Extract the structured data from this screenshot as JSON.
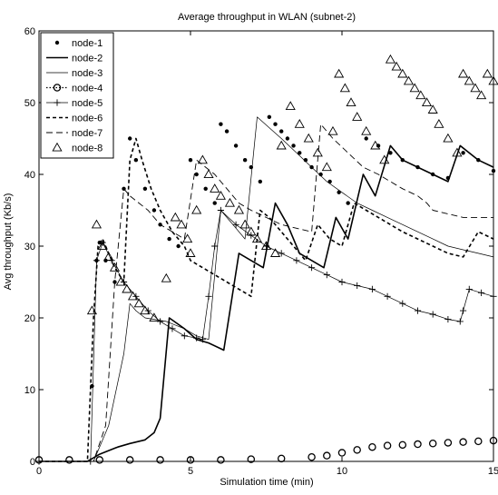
{
  "chart_data": {
    "type": "line",
    "title": "Average throughput in WLAN (subnet-2)",
    "xlabel": "Simulation time (min)",
    "ylabel": "Avg throughput (Kb/s)",
    "xlim": [
      0,
      15
    ],
    "ylim": [
      0,
      60
    ],
    "xticks": [
      0,
      5,
      10,
      15
    ],
    "yticks": [
      0,
      10,
      20,
      30,
      40,
      50,
      60
    ],
    "grid": false,
    "legend": "top-left",
    "series": [
      {
        "name": "node-1",
        "style": "dots",
        "points": [
          [
            1.75,
            10.5
          ],
          [
            1.9,
            28
          ],
          [
            2.0,
            30.5
          ],
          [
            2.2,
            28
          ],
          [
            2.5,
            25
          ],
          [
            2.8,
            38
          ],
          [
            3.0,
            45
          ],
          [
            3.2,
            42
          ],
          [
            3.5,
            38
          ],
          [
            3.8,
            35
          ],
          [
            4.0,
            33
          ],
          [
            4.3,
            31
          ],
          [
            4.6,
            30
          ],
          [
            5.0,
            42
          ],
          [
            5.2,
            40
          ],
          [
            5.5,
            38
          ],
          [
            5.8,
            36
          ],
          [
            6.0,
            47
          ],
          [
            6.2,
            46
          ],
          [
            6.5,
            44
          ],
          [
            6.8,
            42
          ],
          [
            7.0,
            41
          ],
          [
            7.3,
            39
          ],
          [
            7.6,
            48
          ],
          [
            7.8,
            47
          ],
          [
            8.0,
            46
          ],
          [
            8.2,
            45
          ],
          [
            8.4,
            44
          ],
          [
            8.6,
            43
          ],
          [
            8.8,
            42
          ],
          [
            9.0,
            41
          ],
          [
            9.3,
            40
          ],
          [
            9.6,
            39
          ],
          [
            9.9,
            37.5
          ],
          [
            10.2,
            36
          ],
          [
            10.8,
            45
          ],
          [
            11.2,
            44
          ],
          [
            11.6,
            43
          ],
          [
            12.0,
            42
          ],
          [
            12.5,
            41
          ],
          [
            13.0,
            40
          ],
          [
            13.5,
            39.5
          ],
          [
            14.0,
            43
          ],
          [
            14.5,
            42
          ],
          [
            15.0,
            40.5
          ]
        ]
      },
      {
        "name": "node-2",
        "style": "solid",
        "points": [
          [
            0,
            0
          ],
          [
            1.6,
            0
          ],
          [
            1.8,
            0.5
          ],
          [
            2.0,
            1
          ],
          [
            2.3,
            1.5
          ],
          [
            2.6,
            2
          ],
          [
            3.0,
            2.5
          ],
          [
            3.5,
            3
          ],
          [
            3.8,
            4
          ],
          [
            4.0,
            6
          ],
          [
            4.3,
            20
          ],
          [
            4.8,
            18.5
          ],
          [
            5.2,
            17
          ],
          [
            5.6,
            16.5
          ],
          [
            6.1,
            15.5
          ],
          [
            6.6,
            29
          ],
          [
            7.0,
            28
          ],
          [
            7.4,
            27
          ],
          [
            7.8,
            36
          ],
          [
            8.2,
            33
          ],
          [
            8.6,
            29
          ],
          [
            9.0,
            28
          ],
          [
            9.4,
            27
          ],
          [
            9.8,
            34
          ],
          [
            10.2,
            31
          ],
          [
            10.7,
            40
          ],
          [
            11.1,
            37
          ],
          [
            11.6,
            44
          ],
          [
            12.0,
            42
          ],
          [
            12.5,
            41
          ],
          [
            13.0,
            40
          ],
          [
            13.5,
            39
          ],
          [
            13.9,
            44
          ],
          [
            14.5,
            42
          ],
          [
            15.0,
            41
          ]
        ]
      },
      {
        "name": "node-3",
        "style": "thin",
        "points": [
          [
            0,
            0
          ],
          [
            1.8,
            0
          ],
          [
            2.3,
            5
          ],
          [
            2.8,
            15
          ],
          [
            3.0,
            22
          ],
          [
            3.2,
            21
          ],
          [
            3.5,
            20
          ],
          [
            4.2,
            19.5
          ],
          [
            4.8,
            18.5
          ],
          [
            5.2,
            17.5
          ],
          [
            5.6,
            17
          ],
          [
            6.0,
            35
          ],
          [
            6.4,
            33
          ],
          [
            6.8,
            31
          ],
          [
            7.2,
            48
          ],
          [
            7.6,
            46.5
          ],
          [
            8.0,
            45
          ],
          [
            8.5,
            43
          ],
          [
            9.0,
            41
          ],
          [
            9.5,
            39
          ],
          [
            10.0,
            37.5
          ],
          [
            10.5,
            36
          ],
          [
            11.0,
            35
          ],
          [
            11.5,
            34
          ],
          [
            12.0,
            33
          ],
          [
            12.5,
            32
          ],
          [
            13.0,
            31
          ],
          [
            13.5,
            30
          ],
          [
            14.0,
            29.5
          ],
          [
            14.5,
            29
          ],
          [
            15.0,
            28.5
          ]
        ]
      },
      {
        "name": "node-4",
        "style": "circles",
        "points": [
          [
            0,
            0.2
          ],
          [
            1,
            0.2
          ],
          [
            2,
            0.2
          ],
          [
            3,
            0.2
          ],
          [
            4,
            0.2
          ],
          [
            5,
            0.2
          ],
          [
            6,
            0.2
          ],
          [
            7,
            0.3
          ],
          [
            8,
            0.4
          ],
          [
            9,
            0.6
          ],
          [
            9.5,
            0.8
          ],
          [
            10,
            1.2
          ],
          [
            10.5,
            1.6
          ],
          [
            11,
            2.0
          ],
          [
            11.5,
            2.2
          ],
          [
            12,
            2.3
          ],
          [
            12.5,
            2.4
          ],
          [
            13,
            2.5
          ],
          [
            13.5,
            2.6
          ],
          [
            14,
            2.7
          ],
          [
            14.5,
            2.8
          ],
          [
            15,
            2.9
          ]
        ]
      },
      {
        "name": "node-5",
        "style": "plus",
        "points": [
          [
            0,
            0
          ],
          [
            1.7,
            0
          ],
          [
            1.9,
            28
          ],
          [
            2.1,
            30.5
          ],
          [
            2.4,
            28
          ],
          [
            2.8,
            25
          ],
          [
            3.2,
            23
          ],
          [
            3.6,
            21
          ],
          [
            4.0,
            19.5
          ],
          [
            4.4,
            18.5
          ],
          [
            4.8,
            17.5
          ],
          [
            5.2,
            17.2
          ],
          [
            5.4,
            17
          ],
          [
            5.6,
            23
          ],
          [
            5.8,
            30
          ],
          [
            6.0,
            35
          ],
          [
            6.5,
            33
          ],
          [
            7.0,
            31.5
          ],
          [
            7.5,
            30
          ],
          [
            8.0,
            29
          ],
          [
            8.5,
            28
          ],
          [
            9.0,
            27
          ],
          [
            9.5,
            26
          ],
          [
            10.0,
            25
          ],
          [
            10.5,
            24.5
          ],
          [
            11.0,
            24
          ],
          [
            11.5,
            23
          ],
          [
            12.0,
            22
          ],
          [
            12.5,
            21
          ],
          [
            13.0,
            20.5
          ],
          [
            13.5,
            19.8
          ],
          [
            13.9,
            19.5
          ],
          [
            14.0,
            21
          ],
          [
            14.2,
            24
          ],
          [
            14.6,
            23.5
          ],
          [
            15.0,
            23
          ]
        ]
      },
      {
        "name": "node-6",
        "style": "dashed",
        "points": [
          [
            0,
            0
          ],
          [
            1.6,
            0
          ],
          [
            1.8,
            20
          ],
          [
            1.95,
            30
          ],
          [
            2.1,
            31
          ],
          [
            2.5,
            27
          ],
          [
            2.8,
            25
          ],
          [
            3.0,
            42
          ],
          [
            3.2,
            45
          ],
          [
            3.4,
            42
          ],
          [
            3.7,
            38
          ],
          [
            4.0,
            35
          ],
          [
            4.4,
            32
          ],
          [
            4.8,
            30
          ],
          [
            5.0,
            28
          ],
          [
            5.4,
            27
          ],
          [
            5.8,
            26
          ],
          [
            6.2,
            25
          ],
          [
            6.6,
            24
          ],
          [
            7.0,
            23
          ],
          [
            7.3,
            35
          ],
          [
            7.6,
            34
          ],
          [
            8.0,
            32
          ],
          [
            8.4,
            30
          ],
          [
            8.8,
            28
          ],
          [
            9.2,
            33
          ],
          [
            9.6,
            31
          ],
          [
            10.0,
            30
          ],
          [
            10.4,
            36
          ],
          [
            10.8,
            35
          ],
          [
            11.2,
            34
          ],
          [
            11.6,
            33
          ],
          [
            12.0,
            32
          ],
          [
            12.5,
            31
          ],
          [
            13.0,
            30
          ],
          [
            13.5,
            29
          ],
          [
            14.0,
            28.5
          ],
          [
            14.5,
            32
          ],
          [
            15.0,
            31
          ]
        ]
      },
      {
        "name": "node-7",
        "style": "longdash",
        "points": [
          [
            0,
            0
          ],
          [
            1.8,
            0
          ],
          [
            2.2,
            5
          ],
          [
            2.5,
            25
          ],
          [
            2.8,
            38
          ],
          [
            3.0,
            37
          ],
          [
            3.3,
            36
          ],
          [
            3.6,
            35
          ],
          [
            4.0,
            33
          ],
          [
            4.4,
            32
          ],
          [
            4.8,
            31
          ],
          [
            5.2,
            42
          ],
          [
            5.5,
            41
          ],
          [
            5.8,
            40
          ],
          [
            6.2,
            38
          ],
          [
            6.6,
            36
          ],
          [
            7.0,
            35
          ],
          [
            7.5,
            34
          ],
          [
            8.0,
            33
          ],
          [
            8.5,
            32.5
          ],
          [
            9.0,
            32
          ],
          [
            9.3,
            47
          ],
          [
            9.7,
            45
          ],
          [
            10.2,
            43
          ],
          [
            10.7,
            41
          ],
          [
            11.2,
            40
          ],
          [
            11.6,
            39
          ],
          [
            12.0,
            38
          ],
          [
            12.5,
            37
          ],
          [
            12.8,
            36
          ],
          [
            13.0,
            35
          ],
          [
            13.5,
            34.5
          ],
          [
            14.0,
            34
          ],
          [
            14.5,
            34
          ],
          [
            15.0,
            34
          ]
        ]
      },
      {
        "name": "node-8",
        "style": "triangles",
        "points": [
          [
            1.75,
            21
          ],
          [
            1.9,
            33
          ],
          [
            2.1,
            30
          ],
          [
            2.3,
            28.5
          ],
          [
            2.5,
            27
          ],
          [
            2.7,
            25
          ],
          [
            2.9,
            24
          ],
          [
            3.1,
            23
          ],
          [
            3.3,
            22
          ],
          [
            3.5,
            21
          ],
          [
            3.8,
            20
          ],
          [
            4.2,
            25.5
          ],
          [
            4.5,
            34
          ],
          [
            4.7,
            33
          ],
          [
            4.9,
            31
          ],
          [
            5.0,
            29
          ],
          [
            5.2,
            35
          ],
          [
            5.4,
            42
          ],
          [
            5.6,
            40
          ],
          [
            5.8,
            38
          ],
          [
            6.0,
            37
          ],
          [
            6.3,
            36
          ],
          [
            6.6,
            35
          ],
          [
            6.8,
            33
          ],
          [
            7.0,
            32
          ],
          [
            7.2,
            31
          ],
          [
            7.5,
            30
          ],
          [
            7.8,
            29
          ],
          [
            8.0,
            44
          ],
          [
            8.3,
            49.5
          ],
          [
            8.6,
            47
          ],
          [
            8.9,
            45
          ],
          [
            9.2,
            43
          ],
          [
            9.5,
            41
          ],
          [
            9.7,
            46
          ],
          [
            9.9,
            54
          ],
          [
            10.1,
            52
          ],
          [
            10.3,
            50
          ],
          [
            10.5,
            48
          ],
          [
            10.8,
            46
          ],
          [
            11.1,
            44
          ],
          [
            11.4,
            42
          ],
          [
            11.6,
            56
          ],
          [
            11.8,
            55
          ],
          [
            12.0,
            54
          ],
          [
            12.2,
            53
          ],
          [
            12.4,
            52
          ],
          [
            12.6,
            51
          ],
          [
            12.8,
            50
          ],
          [
            13.0,
            49
          ],
          [
            13.2,
            47
          ],
          [
            13.5,
            45
          ],
          [
            13.8,
            43
          ],
          [
            14.0,
            54
          ],
          [
            14.2,
            53
          ],
          [
            14.4,
            52
          ],
          [
            14.6,
            51
          ],
          [
            14.8,
            54
          ],
          [
            15.0,
            53
          ]
        ]
      }
    ]
  }
}
